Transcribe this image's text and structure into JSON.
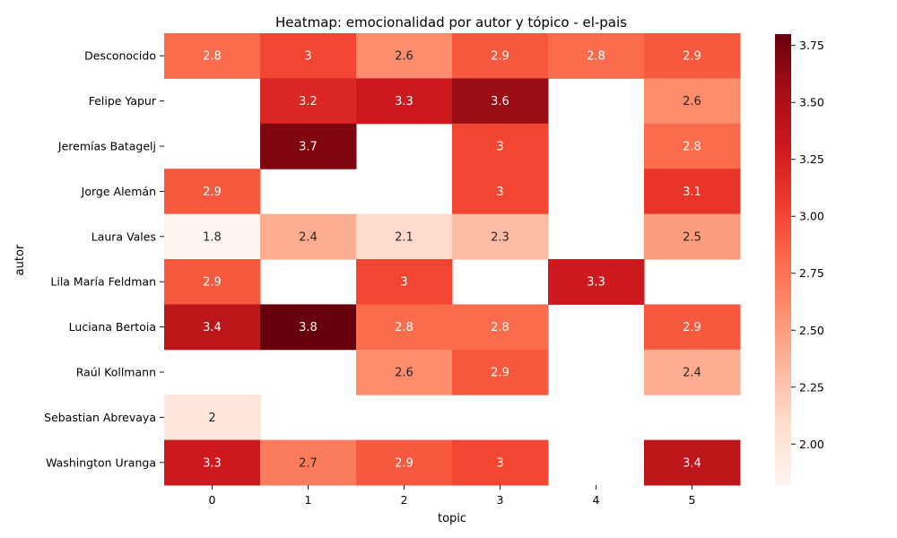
{
  "chart_data": {
    "type": "heatmap",
    "title": "Heatmap: emocionalidad por autor y tópico - el-pais",
    "xlabel": "topic",
    "ylabel": "autor",
    "x_categories": [
      "0",
      "1",
      "2",
      "3",
      "4",
      "5"
    ],
    "y_categories": [
      "Desconocido",
      "Felipe Yapur",
      "Jeremías Batagelj",
      "Jorge Alemán",
      "Laura Vales",
      "Lila María Feldman",
      "Luciana Bertoia",
      "Raúl Kollmann",
      "Sebastian Abrevaya",
      "Washington Uranga"
    ],
    "values": [
      [
        2.8,
        3.0,
        2.6,
        2.9,
        2.8,
        2.9
      ],
      [
        null,
        3.2,
        3.3,
        3.6,
        null,
        2.6
      ],
      [
        null,
        3.7,
        null,
        3.0,
        null,
        2.8
      ],
      [
        2.9,
        null,
        null,
        3.0,
        null,
        3.1
      ],
      [
        1.8,
        2.4,
        2.1,
        2.3,
        null,
        2.5
      ],
      [
        2.9,
        null,
        3.0,
        null,
        3.3,
        null
      ],
      [
        3.4,
        3.8,
        2.8,
        2.8,
        null,
        2.9
      ],
      [
        null,
        null,
        2.6,
        2.9,
        null,
        2.4
      ],
      [
        2.0,
        null,
        null,
        null,
        null,
        null
      ],
      [
        3.3,
        2.7,
        2.9,
        3.0,
        null,
        3.4
      ]
    ],
    "labels": [
      [
        "2.8",
        "3",
        "2.6",
        "2.9",
        "2.8",
        "2.9"
      ],
      [
        null,
        "3.2",
        "3.3",
        "3.6",
        null,
        "2.6"
      ],
      [
        null,
        "3.7",
        null,
        "3",
        null,
        "2.8"
      ],
      [
        "2.9",
        null,
        null,
        "3",
        null,
        "3.1"
      ],
      [
        "1.8",
        "2.4",
        "2.1",
        "2.3",
        null,
        "2.5"
      ],
      [
        "2.9",
        null,
        "3",
        null,
        "3.3",
        null
      ],
      [
        "3.4",
        "3.8",
        "2.8",
        "2.8",
        null,
        "2.9"
      ],
      [
        null,
        null,
        "2.6",
        "2.9",
        null,
        "2.4"
      ],
      [
        "2",
        null,
        null,
        null,
        null,
        null
      ],
      [
        "3.3",
        "2.7",
        "2.9",
        "3",
        null,
        "3.4"
      ]
    ],
    "colorscale": "Reds",
    "vmin": 1.82,
    "vmax": 3.8,
    "colorbar_ticks": [
      "2.00",
      "2.25",
      "2.50",
      "2.75",
      "3.00",
      "3.25",
      "3.50",
      "3.75"
    ],
    "colorbar_tick_values": [
      2.0,
      2.25,
      2.5,
      2.75,
      3.0,
      3.25,
      3.5,
      3.75
    ],
    "grid": false,
    "legend": "colorbar-right"
  }
}
